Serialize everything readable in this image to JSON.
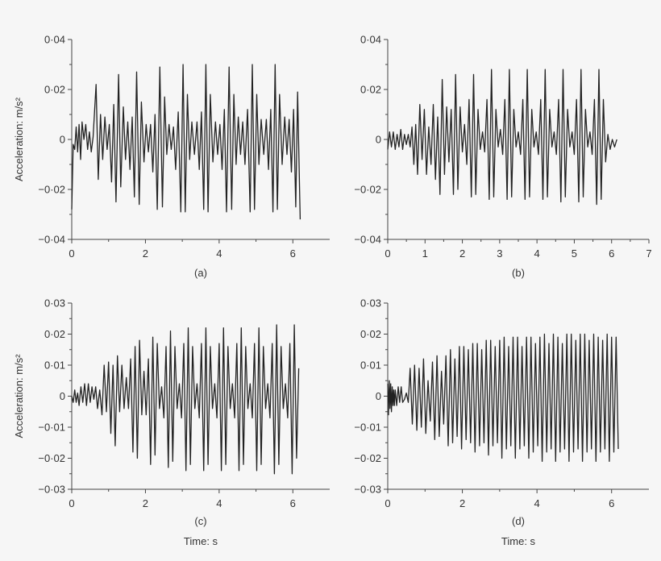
{
  "chart_data": [
    {
      "type": "line",
      "panel_label": "(a)",
      "ylabel": "Acceleration: m/s²",
      "xlabel": "",
      "xlim": [
        0,
        7
      ],
      "ylim": [
        -0.04,
        0.04
      ],
      "xticks": [
        0,
        2,
        4,
        6
      ],
      "xtick_labels": [
        "0",
        "2",
        "4",
        "6"
      ],
      "yticks": [
        -0.04,
        -0.02,
        0,
        0.02,
        0.04
      ],
      "ytick_labels": [
        "−0·04",
        "−0·02",
        "0",
        "0·02",
        "0·04"
      ],
      "grid": false,
      "series": [
        {
          "x": [
            0,
            0.04,
            0.08,
            0.12,
            0.16,
            0.2,
            0.24,
            0.28,
            0.33,
            0.38,
            0.43,
            0.48,
            0.53,
            0.58,
            0.66,
            0.72,
            0.78,
            0.84,
            0.9,
            0.96,
            1.02,
            1.08,
            1.14,
            1.2,
            1.27,
            1.33,
            1.4,
            1.46,
            1.52,
            1.58,
            1.64,
            1.7,
            1.76,
            1.83,
            1.89,
            1.96,
            2.02,
            2.08,
            2.14,
            2.2,
            2.26,
            2.32,
            2.39,
            2.46,
            2.52,
            2.58,
            2.64,
            2.7,
            2.76,
            2.82,
            2.89,
            2.96,
            3.02,
            3.08,
            3.14,
            3.2,
            3.26,
            3.33,
            3.4,
            3.46,
            3.52,
            3.58,
            3.64,
            3.7,
            3.76,
            3.83,
            3.9,
            3.96,
            4.02,
            4.08,
            4.14,
            4.2,
            4.27,
            4.34,
            4.4,
            4.46,
            4.52,
            4.58,
            4.64,
            4.7,
            4.77,
            4.84,
            4.9,
            4.96,
            5.02,
            5.08,
            5.14,
            5.21,
            5.28,
            5.34,
            5.4,
            5.46,
            5.52,
            5.58,
            5.64,
            5.71,
            5.78,
            5.84,
            5.9,
            5.96,
            6.02,
            6.08,
            6.13,
            6.2
          ],
          "y": [
            -0.028,
            -0.002,
            -0.004,
            0.005,
            -0.005,
            0.006,
            -0.008,
            0.007,
            0.0,
            0.006,
            -0.004,
            0.003,
            -0.005,
            0.001,
            0.022,
            -0.016,
            0.01,
            -0.008,
            0.009,
            -0.004,
            0.006,
            -0.017,
            0.014,
            -0.025,
            0.026,
            -0.019,
            0.013,
            -0.008,
            0.007,
            -0.012,
            0.009,
            -0.023,
            0.027,
            -0.026,
            0.015,
            -0.009,
            0.006,
            -0.005,
            0.006,
            -0.013,
            0.01,
            -0.028,
            0.029,
            -0.027,
            0.017,
            -0.006,
            0.006,
            -0.004,
            0.005,
            -0.012,
            0.011,
            -0.029,
            0.03,
            -0.029,
            0.018,
            -0.008,
            0.007,
            -0.006,
            0.007,
            -0.012,
            0.011,
            -0.028,
            0.03,
            -0.029,
            0.018,
            -0.009,
            0.007,
            -0.006,
            0.006,
            -0.012,
            0.012,
            -0.029,
            0.029,
            -0.028,
            0.018,
            -0.01,
            0.009,
            -0.006,
            0.007,
            -0.01,
            0.012,
            -0.029,
            0.03,
            -0.028,
            0.018,
            -0.01,
            0.008,
            -0.006,
            0.008,
            -0.012,
            0.012,
            -0.029,
            0.03,
            -0.028,
            0.018,
            -0.01,
            0.009,
            -0.006,
            0.008,
            -0.013,
            0.012,
            -0.027,
            0.019,
            -0.032
          ]
        }
      ]
    },
    {
      "type": "line",
      "panel_label": "(b)",
      "ylabel": "",
      "xlabel": "",
      "xlim": [
        0,
        7
      ],
      "ylim": [
        -0.04,
        0.04
      ],
      "xticks": [
        0,
        1,
        2,
        3,
        4,
        5,
        6,
        7
      ],
      "xtick_labels": [
        "0",
        "1",
        "2",
        "3",
        "4",
        "5",
        "6",
        "7"
      ],
      "yticks": [
        -0.04,
        -0.02,
        0,
        0.02,
        0.04
      ],
      "ytick_labels": [
        "−0·04",
        "−0·02",
        "0",
        "0·02",
        "0·04"
      ],
      "grid": false,
      "series": [
        {
          "x": [
            0,
            0.05,
            0.1,
            0.15,
            0.2,
            0.25,
            0.3,
            0.35,
            0.4,
            0.45,
            0.5,
            0.55,
            0.6,
            0.65,
            0.7,
            0.75,
            0.8,
            0.86,
            0.92,
            0.98,
            1.04,
            1.1,
            1.16,
            1.22,
            1.28,
            1.34,
            1.4,
            1.46,
            1.52,
            1.58,
            1.64,
            1.7,
            1.76,
            1.82,
            1.88,
            1.94,
            2.0,
            2.06,
            2.12,
            2.18,
            2.24,
            2.3,
            2.36,
            2.42,
            2.48,
            2.54,
            2.6,
            2.66,
            2.72,
            2.78,
            2.84,
            2.9,
            2.96,
            3.02,
            3.08,
            3.14,
            3.2,
            3.26,
            3.32,
            3.38,
            3.44,
            3.5,
            3.56,
            3.62,
            3.68,
            3.74,
            3.8,
            3.86,
            3.92,
            3.98,
            4.04,
            4.1,
            4.16,
            4.22,
            4.28,
            4.34,
            4.4,
            4.46,
            4.52,
            4.58,
            4.64,
            4.7,
            4.76,
            4.82,
            4.88,
            4.94,
            5.0,
            5.06,
            5.12,
            5.18,
            5.24,
            5.3,
            5.36,
            5.42,
            5.48,
            5.54,
            5.6,
            5.66,
            5.72,
            5.78,
            5.84,
            5.9,
            5.96,
            6.02,
            6.08,
            6.14
          ],
          "y": [
            -0.004,
            0.003,
            -0.003,
            0.003,
            -0.004,
            0.002,
            -0.003,
            0.004,
            -0.004,
            0.002,
            -0.002,
            0.002,
            -0.003,
            0.005,
            -0.01,
            0.006,
            -0.014,
            0.014,
            -0.008,
            0.012,
            -0.014,
            0.005,
            -0.01,
            0.014,
            -0.016,
            0.009,
            -0.022,
            0.024,
            -0.014,
            0.013,
            -0.009,
            0.012,
            -0.022,
            0.026,
            -0.02,
            0.013,
            -0.005,
            0.006,
            -0.01,
            0.016,
            -0.023,
            0.026,
            -0.022,
            0.012,
            -0.004,
            0.003,
            -0.005,
            0.016,
            -0.024,
            0.028,
            -0.023,
            0.012,
            -0.003,
            0.004,
            -0.006,
            0.016,
            -0.024,
            0.028,
            -0.023,
            0.012,
            -0.003,
            0.003,
            -0.006,
            0.016,
            -0.024,
            0.028,
            -0.023,
            0.012,
            -0.003,
            0.003,
            -0.006,
            0.016,
            -0.024,
            0.028,
            -0.023,
            0.012,
            -0.003,
            0.003,
            -0.006,
            0.016,
            -0.025,
            0.028,
            -0.023,
            0.012,
            -0.003,
            0.003,
            -0.006,
            0.016,
            -0.025,
            0.028,
            -0.023,
            0.012,
            -0.003,
            0.003,
            -0.006,
            0.016,
            -0.026,
            0.028,
            -0.024,
            0.016,
            -0.009,
            0.002,
            -0.004,
            0.0,
            -0.003,
            0.0
          ]
        }
      ]
    },
    {
      "type": "line",
      "panel_label": "(c)",
      "ylabel": "Acceleration: m/s²",
      "xlabel": "Time: s",
      "xlim": [
        0,
        7
      ],
      "ylim": [
        -0.03,
        0.03
      ],
      "xticks": [
        0,
        2,
        4,
        6
      ],
      "xtick_labels": [
        "0",
        "2",
        "4",
        "6"
      ],
      "yticks": [
        -0.03,
        -0.02,
        -0.01,
        0,
        0.01,
        0.02,
        0.03
      ],
      "ytick_labels": [
        "−0·03",
        "−0·02",
        "−0·01",
        "0",
        "0·01",
        "0·02",
        "0·03"
      ],
      "grid": false,
      "series": [
        {
          "x": [
            0,
            0.04,
            0.08,
            0.12,
            0.16,
            0.2,
            0.25,
            0.3,
            0.35,
            0.4,
            0.45,
            0.5,
            0.55,
            0.6,
            0.65,
            0.7,
            0.76,
            0.82,
            0.88,
            0.94,
            1.0,
            1.06,
            1.12,
            1.18,
            1.24,
            1.3,
            1.36,
            1.42,
            1.48,
            1.54,
            1.6,
            1.66,
            1.72,
            1.78,
            1.84,
            1.9,
            1.96,
            2.02,
            2.08,
            2.14,
            2.2,
            2.26,
            2.32,
            2.38,
            2.44,
            2.5,
            2.56,
            2.62,
            2.68,
            2.74,
            2.8,
            2.86,
            2.92,
            2.98,
            3.04,
            3.1,
            3.16,
            3.22,
            3.28,
            3.34,
            3.4,
            3.46,
            3.52,
            3.58,
            3.64,
            3.7,
            3.76,
            3.82,
            3.88,
            3.94,
            4.0,
            4.06,
            4.12,
            4.18,
            4.24,
            4.3,
            4.36,
            4.42,
            4.48,
            4.54,
            4.6,
            4.66,
            4.72,
            4.78,
            4.84,
            4.9,
            4.96,
            5.02,
            5.08,
            5.14,
            5.2,
            5.26,
            5.32,
            5.38,
            5.44,
            5.5,
            5.56,
            5.62,
            5.68,
            5.74,
            5.8,
            5.86,
            5.92,
            5.98,
            6.04,
            6.1,
            6.16
          ],
          "y": [
            0.0,
            -0.002,
            0.002,
            -0.002,
            0.001,
            -0.003,
            0.003,
            -0.002,
            0.004,
            -0.003,
            0.004,
            -0.002,
            0.003,
            -0.001,
            0.003,
            -0.004,
            0.002,
            -0.006,
            0.01,
            -0.005,
            0.011,
            -0.012,
            0.01,
            -0.016,
            0.013,
            -0.005,
            0.01,
            -0.004,
            0.006,
            -0.004,
            0.012,
            -0.018,
            0.016,
            -0.02,
            0.018,
            -0.006,
            0.008,
            -0.006,
            0.012,
            -0.022,
            0.019,
            -0.019,
            0.017,
            -0.004,
            0.003,
            -0.007,
            0.016,
            -0.023,
            0.021,
            -0.021,
            0.016,
            -0.004,
            0.004,
            -0.007,
            0.017,
            -0.024,
            0.022,
            -0.022,
            0.016,
            -0.004,
            0.004,
            -0.007,
            0.017,
            -0.024,
            0.022,
            -0.022,
            0.016,
            -0.004,
            0.004,
            -0.007,
            0.017,
            -0.024,
            0.022,
            -0.022,
            0.016,
            -0.004,
            0.004,
            -0.007,
            0.017,
            -0.024,
            0.022,
            -0.022,
            0.016,
            -0.004,
            0.004,
            -0.007,
            0.017,
            -0.024,
            0.022,
            -0.022,
            0.016,
            -0.004,
            0.004,
            -0.007,
            0.017,
            -0.025,
            0.023,
            -0.022,
            0.016,
            -0.004,
            0.004,
            -0.007,
            0.017,
            -0.025,
            0.023,
            -0.02,
            0.009
          ]
        }
      ]
    },
    {
      "type": "line",
      "panel_label": "(d)",
      "ylabel": "",
      "xlabel": "Time: s",
      "xlim": [
        0,
        7
      ],
      "ylim": [
        -0.03,
        0.03
      ],
      "xticks": [
        0,
        2,
        4,
        6
      ],
      "xtick_labels": [
        "0",
        "2",
        "4",
        "6"
      ],
      "yticks": [
        -0.03,
        -0.02,
        -0.01,
        0,
        0.01,
        0.02,
        0.03
      ],
      "ytick_labels": [
        "−0·03",
        "−0·02",
        "−0·01",
        "0",
        "0·01",
        "0·02",
        "0·03"
      ],
      "grid": false,
      "series": [
        {
          "x": [
            0,
            0.02,
            0.04,
            0.06,
            0.08,
            0.1,
            0.12,
            0.14,
            0.16,
            0.18,
            0.2,
            0.24,
            0.28,
            0.32,
            0.36,
            0.4,
            0.45,
            0.5,
            0.55,
            0.6,
            0.66,
            0.72,
            0.78,
            0.84,
            0.9,
            0.96,
            1.02,
            1.08,
            1.14,
            1.2,
            1.26,
            1.32,
            1.38,
            1.44,
            1.5,
            1.56,
            1.62,
            1.68,
            1.74,
            1.8,
            1.86,
            1.92,
            1.98,
            2.04,
            2.1,
            2.16,
            2.22,
            2.28,
            2.34,
            2.4,
            2.46,
            2.52,
            2.58,
            2.64,
            2.7,
            2.76,
            2.82,
            2.88,
            2.94,
            3.0,
            3.06,
            3.12,
            3.18,
            3.24,
            3.3,
            3.36,
            3.42,
            3.48,
            3.54,
            3.6,
            3.66,
            3.72,
            3.78,
            3.84,
            3.9,
            3.96,
            4.02,
            4.08,
            4.14,
            4.2,
            4.26,
            4.32,
            4.38,
            4.44,
            4.5,
            4.56,
            4.62,
            4.68,
            4.74,
            4.8,
            4.86,
            4.92,
            4.98,
            5.04,
            5.1,
            5.16,
            5.22,
            5.28,
            5.34,
            5.4,
            5.46,
            5.52,
            5.58,
            5.64,
            5.7,
            5.76,
            5.82,
            5.88,
            5.94,
            6.0,
            6.06,
            6.12,
            6.18
          ],
          "y": [
            0.004,
            -0.006,
            0.005,
            -0.004,
            0.004,
            -0.005,
            0.003,
            -0.003,
            0.002,
            -0.003,
            0.002,
            -0.003,
            0.003,
            -0.002,
            0.003,
            -0.002,
            -0.001,
            0.001,
            -0.002,
            0.009,
            -0.009,
            0.01,
            -0.011,
            0.009,
            -0.01,
            0.012,
            -0.012,
            0.005,
            -0.008,
            0.011,
            -0.014,
            0.013,
            -0.013,
            0.008,
            -0.009,
            0.013,
            -0.016,
            0.015,
            -0.015,
            0.012,
            -0.013,
            0.016,
            -0.017,
            0.016,
            -0.014,
            0.015,
            -0.015,
            0.017,
            -0.018,
            0.017,
            -0.016,
            0.015,
            -0.015,
            0.018,
            -0.019,
            0.018,
            -0.016,
            0.016,
            -0.015,
            0.018,
            -0.02,
            0.019,
            -0.017,
            0.016,
            -0.016,
            0.019,
            -0.02,
            0.019,
            -0.017,
            0.016,
            -0.016,
            0.019,
            -0.02,
            0.019,
            -0.018,
            0.017,
            -0.016,
            0.019,
            -0.021,
            0.02,
            -0.018,
            0.017,
            -0.017,
            0.02,
            -0.021,
            0.019,
            -0.018,
            0.017,
            -0.017,
            0.02,
            -0.021,
            0.02,
            -0.018,
            0.018,
            -0.017,
            0.02,
            -0.021,
            0.02,
            -0.018,
            0.018,
            -0.017,
            0.02,
            -0.021,
            0.019,
            -0.018,
            0.018,
            -0.017,
            0.02,
            -0.021,
            0.019,
            -0.018,
            0.019,
            -0.017
          ]
        }
      ]
    }
  ]
}
